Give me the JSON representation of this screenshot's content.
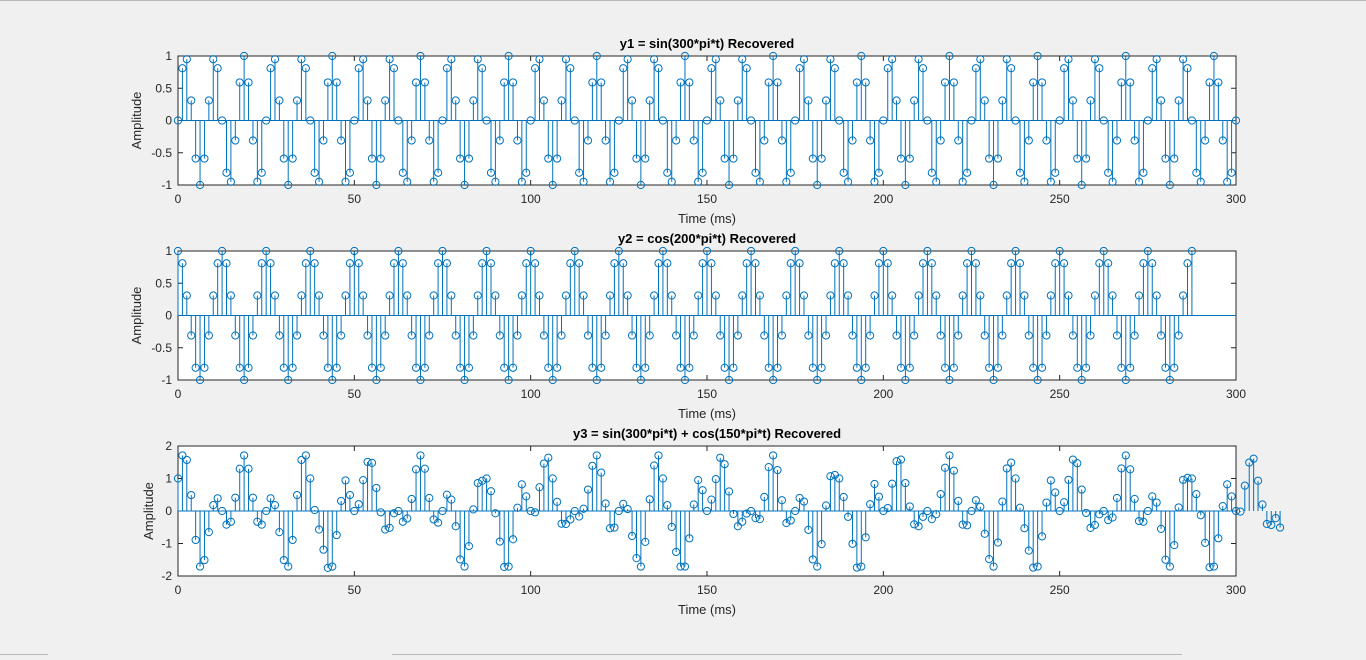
{
  "figure": {
    "background": "#f0f0f0",
    "stem_color": "#0072bd",
    "axes_color": "#262626"
  },
  "chart_data": [
    {
      "type": "stem",
      "title": "y1 = sin(300*pi*t) Recovered",
      "xlabel": "Time (ms)",
      "ylabel": "Amplitude",
      "xlim": [
        0,
        300
      ],
      "ylim": [
        -1,
        1
      ],
      "xticks": [
        0,
        50,
        100,
        150,
        200,
        250,
        300
      ],
      "xtick_labels": [
        "0",
        "50",
        "100",
        "150",
        "200",
        "250",
        "300"
      ],
      "yticks": [
        1,
        0.5,
        0,
        -0.5,
        -1
      ],
      "ytick_labels": [
        "1",
        "0.5",
        "0",
        "-0.5",
        "-1"
      ],
      "series": [
        {
          "x_start": 0,
          "x_step": 1.25,
          "count": 241,
          "values": [
            0,
            0.81,
            0.95,
            0.31,
            -0.59,
            -1,
            -0.59,
            0.31,
            0.95,
            0.81,
            0,
            -0.81,
            -0.95,
            -0.31,
            0.59,
            1,
            0.59,
            -0.31,
            -0.95,
            -0.81,
            0,
            0.81,
            0.95,
            0.31,
            -0.59,
            -1,
            -0.59,
            0.31,
            0.95,
            0.81,
            0,
            -0.81,
            -0.95,
            -0.31,
            0.59,
            1,
            0.59,
            -0.31,
            -0.95,
            -0.81,
            0,
            0.81,
            0.95,
            0.31,
            -0.59,
            -1,
            -0.59,
            0.31,
            0.95,
            0.81,
            0,
            -0.81,
            -0.95,
            -0.31,
            0.59,
            1,
            0.59,
            -0.31,
            -0.95,
            -0.81,
            0,
            0.81,
            0.95,
            0.31,
            -0.59,
            -1,
            -0.59,
            0.31,
            0.95,
            0.81,
            0,
            -0.81,
            -0.95,
            -0.31,
            0.59,
            1,
            0.59,
            -0.31,
            -0.95,
            -0.81,
            0,
            0.81,
            0.95,
            0.31,
            -0.59,
            -1,
            -0.59,
            0.31,
            0.95,
            0.81,
            0,
            -0.81,
            -0.95,
            -0.31,
            0.59,
            1,
            0.59,
            -0.31,
            -0.95,
            -0.81,
            0,
            0.81,
            0.95,
            0.31,
            -0.59,
            -1,
            -0.59,
            0.31,
            0.95,
            0.81,
            0,
            -0.81,
            -0.95,
            -0.31,
            0.59,
            1,
            0.59,
            -0.31,
            -0.95,
            -0.81,
            0,
            0.81,
            0.95,
            0.31,
            -0.59,
            -1,
            -0.59,
            0.31,
            0.95,
            0.81,
            0,
            -0.81,
            -0.95,
            -0.31,
            0.59,
            1,
            0.59,
            -0.31,
            -0.95,
            -0.81,
            0,
            0.81,
            0.95,
            0.31,
            -0.59,
            -1,
            -0.59,
            0.31,
            0.95,
            0.81,
            0,
            -0.81,
            -0.95,
            -0.31,
            0.59,
            1,
            0.59,
            -0.31,
            -0.95,
            -0.81,
            0,
            0.81,
            0.95,
            0.31,
            -0.59,
            -1,
            -0.59,
            0.31,
            0.95,
            0.81,
            0,
            -0.81,
            -0.95,
            -0.31,
            0.59,
            1,
            0.59,
            -0.31,
            -0.95,
            -0.81,
            0,
            0.81,
            0.95,
            0.31,
            -0.59,
            -1,
            -0.59,
            0.31,
            0.95,
            0.81,
            0,
            -0.81,
            -0.95,
            -0.31,
            0.59,
            1,
            0.59,
            -0.31,
            -0.95,
            -0.81,
            0,
            0.81,
            0.95,
            0.31,
            -0.59,
            -1,
            -0.59,
            0.31,
            0.95,
            0.81,
            0,
            -0.81,
            -0.95,
            -0.31,
            0.59,
            1,
            0.59,
            -0.31,
            -0.95,
            -0.81,
            0,
            0.81,
            0.95,
            0.31,
            -0.59,
            -1,
            -0.59,
            0.31,
            0.95,
            0.81,
            0,
            -0.81,
            -0.95,
            -0.31,
            0.59,
            1,
            0.59,
            -0.31,
            -0.95,
            -0.81,
            0
          ]
        }
      ]
    },
    {
      "type": "stem",
      "title": "y2 = cos(200*pi*t) Recovered",
      "xlabel": "Time (ms)",
      "ylabel": "Amplitude",
      "xlim": [
        0,
        300
      ],
      "ylim": [
        -1,
        1
      ],
      "xticks": [
        0,
        50,
        100,
        150,
        200,
        250,
        300
      ],
      "xtick_labels": [
        "0",
        "50",
        "100",
        "150",
        "200",
        "250",
        "300"
      ],
      "yticks": [
        1,
        0.5,
        0,
        -0.5,
        -1
      ],
      "ytick_labels": [
        "1",
        "0.5",
        "0",
        "-0.5",
        "-1"
      ],
      "series": [
        {
          "x_start": 0,
          "x_step": 1.25,
          "count": 241,
          "values": [
            1,
            0.81,
            0.31,
            -0.31,
            -0.81,
            -1,
            -0.81,
            -0.31,
            0.31,
            0.81,
            1,
            0.81,
            0.31,
            -0.31,
            -0.81,
            -1,
            -0.81,
            -0.31,
            0.31,
            0.81,
            1,
            0.81,
            0.31,
            -0.31,
            -0.81,
            -1,
            -0.81,
            -0.31,
            0.31,
            0.81,
            1,
            0.81,
            0.31,
            -0.31,
            -0.81,
            -1,
            -0.81,
            -0.31,
            0.31,
            0.81,
            1,
            0.81,
            0.31,
            -0.31,
            -0.81,
            -1,
            -0.81,
            -0.31,
            0.31,
            0.81,
            1,
            0.81,
            0.31,
            -0.31,
            -0.81,
            -1,
            -0.81,
            -0.31,
            0.31,
            0.81,
            1,
            0.81,
            0.31,
            -0.31,
            -0.81,
            -1,
            -0.81,
            -0.31,
            0.31,
            0.81,
            1,
            0.81,
            0.31,
            -0.31,
            -0.81,
            -1,
            -0.81,
            -0.31,
            0.31,
            0.81,
            1,
            0.81,
            0.31,
            -0.31,
            -0.81,
            -1,
            -0.81,
            -0.31,
            0.31,
            0.81,
            1,
            0.81,
            0.31,
            -0.31,
            -0.81,
            -1,
            -0.81,
            -0.31,
            0.31,
            0.81,
            1,
            0.81,
            0.31,
            -0.31,
            -0.81,
            -1,
            -0.81,
            -0.31,
            0.31,
            0.81,
            1,
            0.81,
            0.31,
            -0.31,
            -0.81,
            -1,
            -0.81,
            -0.31,
            0.31,
            0.81,
            1,
            0.81,
            0.31,
            -0.31,
            -0.81,
            -1,
            -0.81,
            -0.31,
            0.31,
            0.81,
            1,
            0.81,
            0.31,
            -0.31,
            -0.81,
            -1,
            -0.81,
            -0.31,
            0.31,
            0.81,
            1,
            0.81,
            0.31,
            -0.31,
            -0.81,
            -1,
            -0.81,
            -0.31,
            0.31,
            0.81,
            1,
            0.81,
            0.31,
            -0.31,
            -0.81,
            -1,
            -0.81,
            -0.31,
            0.31,
            0.81,
            1,
            0.81,
            0.31,
            -0.31,
            -0.81,
            -1,
            -0.81,
            -0.31,
            0.31,
            0.81,
            1,
            0.81,
            0.31,
            -0.31,
            -0.81,
            -1,
            -0.81,
            -0.31,
            0.31,
            0.81,
            1,
            0.81,
            0.31,
            -0.31,
            -0.81,
            -1,
            -0.81,
            -0.31,
            0.31,
            0.81,
            1,
            0.81,
            0.31,
            -0.31,
            -0.81,
            -1,
            -0.81,
            -0.31,
            0.31,
            0.81,
            1,
            0.81,
            0.31,
            -0.31,
            -0.81,
            -1,
            -0.81,
            -0.31,
            0.31,
            0.81,
            1,
            0.81,
            0.31,
            -0.31,
            -0.81,
            -1,
            -0.81,
            -0.31,
            0.31,
            0.81,
            1,
            0.81,
            0.31,
            -0.31,
            -0.81,
            -1,
            -0.81,
            -0.31,
            0.31,
            0.81,
            1
          ]
        }
      ]
    },
    {
      "type": "stem",
      "title": "y3 = sin(300*pi*t) + cos(150*pi*t) Recovered",
      "xlabel": "Time (ms)",
      "ylabel": "Amplitude",
      "xlim": [
        0,
        300
      ],
      "ylim": [
        -2,
        2
      ],
      "xticks": [
        0,
        50,
        100,
        150,
        200,
        250,
        300
      ],
      "xtick_labels": [
        "0",
        "50",
        "100",
        "150",
        "200",
        "250",
        "300"
      ],
      "yticks": [
        2,
        1,
        0,
        -1,
        -2
      ],
      "ytick_labels": [
        "2",
        "1",
        "0",
        "-1",
        "-2"
      ],
      "series": [
        {
          "x_start": 0,
          "x_step": 1.25,
          "count": 241,
          "values": [
            1,
            1.71,
            1.57,
            0.49,
            -0.89,
            -1.71,
            -1.51,
            -0.65,
            0.18,
            0.39,
            0,
            -0.42,
            -0.33,
            0.41,
            1.3,
            1.71,
            1.3,
            0.41,
            -0.33,
            -0.42,
            0,
            0.39,
            0.18,
            -0.65,
            -1.51,
            -1.71,
            -0.89,
            0.49,
            1.57,
            1.71,
            1,
            0.03,
            -0.57,
            -1.19,
            -1.75,
            -1.71,
            -0.74,
            0.31,
            0.94,
            0.49,
            0,
            0.21,
            0.95,
            1.51,
            1.48,
            0.71,
            -0.04,
            -0.57,
            -0.52,
            -0.07,
            0,
            -0.33,
            -0.23,
            0.37,
            1.28,
            1.71,
            1.3,
            0.4,
            -0.26,
            -0.36,
            0,
            0.5,
            0.35,
            -0.47,
            -1.49,
            -1.71,
            -1.08,
            0.05,
            0.86,
            0.93,
            1,
            0.61,
            -0.07,
            -0.94,
            -1.72,
            -1.71,
            -0.87,
            0.1,
            0.82,
            0.45,
            0,
            -0.04,
            0.73,
            1.46,
            1.64,
            1.0,
            0.28,
            -0.39,
            -0.4,
            -0.26,
            0,
            -0.17,
            0.07,
            0.66,
            1.39,
            1.71,
            1.18,
            0.23,
            -0.53,
            -0.51,
            0,
            0.22,
            0.06,
            -0.77,
            -1.45,
            -1.71,
            -0.95,
            0.36,
            1.4,
            1.71,
            1,
            0.18,
            -0.49,
            -1.26,
            -1.71,
            -1.71,
            -0.84,
            0.2,
            0.95,
            0.64,
            0,
            0.35,
            0.98,
            1.64,
            1.44,
            0.6,
            -0.09,
            -0.47,
            -0.33,
            -0.08,
            0,
            -0.22,
            -0.25,
            0.43,
            1.35,
            1.71,
            1.26,
            0.33,
            -0.37,
            -0.29,
            0,
            0.4,
            0.29,
            -0.58,
            -1.49,
            -1.71,
            -1.02,
            0.17,
            1.07,
            1.11,
            1,
            0.43,
            -0.18,
            -1.01,
            -1.74,
            -1.71,
            -0.81,
            0.21,
            0.83,
            0.44,
            0,
            0.09,
            0.84,
            1.53,
            1.58,
            0.86,
            0.14,
            -0.41,
            -0.47,
            -0.18,
            0,
            -0.25,
            -0.1,
            0.52,
            1.33,
            1.71,
            1.24,
            0.31,
            -0.42,
            -0.44,
            0,
            0.33,
            0.13,
            -0.7,
            -1.48,
            -1.71,
            -0.97,
            0.29,
            1.31,
            1.49,
            1,
            0.1,
            -0.53,
            -1.22,
            -1.74,
            -1.71,
            -0.78,
            0.26,
            0.94,
            0.57,
            0,
            0.27,
            0.96,
            1.58,
            1.47,
            0.66,
            -0.06,
            -0.52,
            -0.43,
            -0.1,
            0,
            -0.28,
            -0.2,
            0.4,
            1.31,
            1.71,
            1.28,
            0.37,
            -0.31,
            -0.33,
            0,
            0.45,
            0.26,
            -0.55,
            -1.5,
            -1.71,
            -1.05,
            0.11,
            0.96,
            1.02,
            1,
            0.52,
            -0.13,
            -0.98,
            -1.73,
            -1.71,
            -0.84,
            0.15,
            0.82,
            0.45,
            0,
            -0.02,
            0.78,
            1.49,
            1.61,
            0.93,
            0.2,
            -0.4,
            -0.43,
            -0.22,
            -0.51
          ]
        }
      ]
    }
  ]
}
